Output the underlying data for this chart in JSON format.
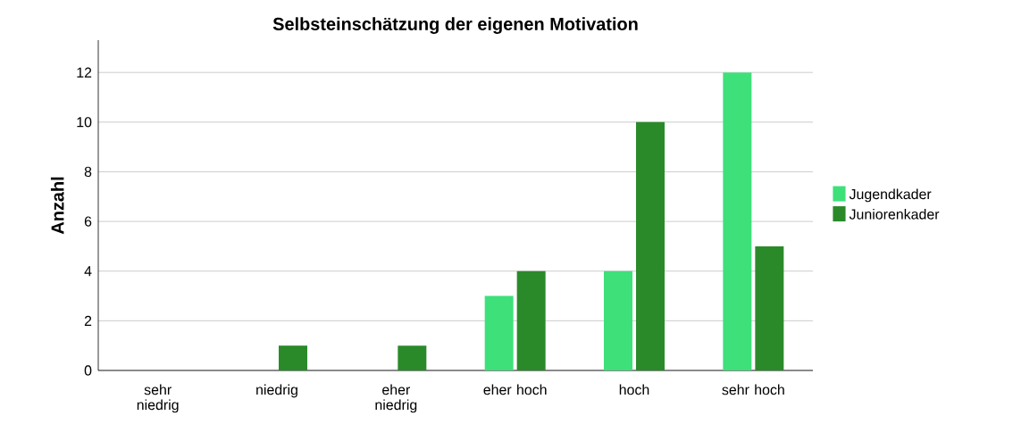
{
  "chart_data": {
    "type": "bar",
    "title": "Selbsteinschätzung der eigenen Motivation",
    "ylabel": "Anzahl",
    "categories": [
      "sehr niedrig",
      "niedrig",
      "eher niedrig",
      "eher hoch",
      "hoch",
      "sehr hoch"
    ],
    "series": [
      {
        "name": "Jugendkader",
        "color": "#3ee07a",
        "values": [
          0,
          0,
          0,
          3,
          4,
          12
        ]
      },
      {
        "name": "Juniorenkader",
        "color": "#2a8a2a",
        "values": [
          0,
          1,
          1,
          4,
          10,
          5
        ]
      }
    ],
    "ylim": [
      0,
      13.3
    ],
    "yticks": [
      0,
      2,
      4,
      6,
      8,
      10,
      12
    ],
    "grid": "y",
    "legend": "right"
  }
}
